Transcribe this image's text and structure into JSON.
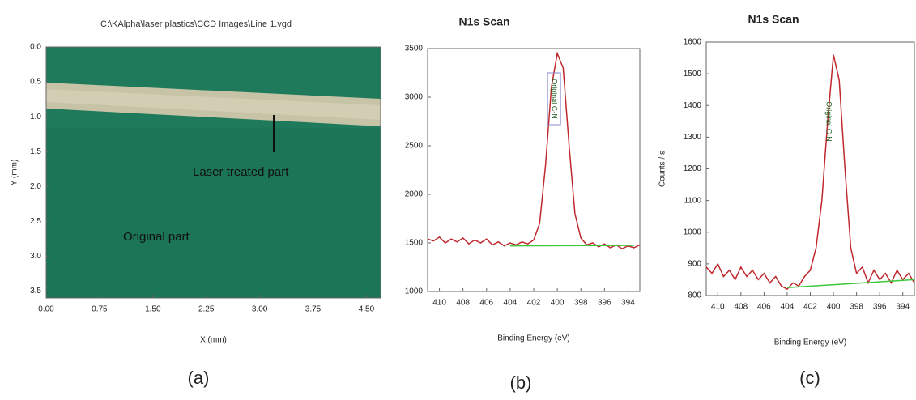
{
  "chart_data": [
    {
      "type": "image",
      "title": "C:\\KAlpha\\laser plastics\\CCD Images\\Line 1.vgd",
      "panel_label": "(a)",
      "xlabel": "X (mm)",
      "ylabel": "Y (mm)",
      "xlim": [
        0,
        4.7
      ],
      "ylim": [
        3.6,
        0
      ],
      "xticks": [
        {
          "value": 0,
          "label": "0.00"
        },
        {
          "value": 0.75,
          "label": "0.75"
        },
        {
          "value": 1.5,
          "label": "1.50"
        },
        {
          "value": 2.25,
          "label": "2.25"
        },
        {
          "value": 3,
          "label": "3.00"
        },
        {
          "value": 3.75,
          "label": "3.75"
        },
        {
          "value": 4.5,
          "label": "4.50"
        }
      ],
      "yticks": [
        {
          "value": 0,
          "label": "0.0"
        },
        {
          "value": 0.5,
          "label": "0.5"
        },
        {
          "value": 1,
          "label": "1.0"
        },
        {
          "value": 1.5,
          "label": "1.5"
        },
        {
          "value": 2,
          "label": "2.0"
        },
        {
          "value": 2.5,
          "label": "2.5"
        },
        {
          "value": 3,
          "label": "3.0"
        },
        {
          "value": 3.5,
          "label": "3.5"
        }
      ],
      "annotations": [
        {
          "text": "Laser treated part"
        },
        {
          "text": "Original part"
        }
      ]
    },
    {
      "type": "line",
      "title": "N1s Scan",
      "panel_label": "(b)",
      "xlabel": "Binding Energy (eV)",
      "xlim": [
        411,
        393
      ],
      "ylim": [
        1000,
        3500
      ],
      "xticks": [
        410,
        408,
        406,
        404,
        402,
        400,
        398,
        396,
        394
      ],
      "yticks": [
        1000,
        1500,
        2000,
        2500,
        3000,
        3500
      ],
      "annotations": [
        {
          "text": "Original C-N"
        }
      ],
      "series": [
        {
          "color": "#c0282d",
          "x": [
            411,
            410.5,
            410,
            409.5,
            409,
            408.5,
            408,
            407.5,
            407,
            406.5,
            406,
            405.5,
            405,
            404.5,
            404,
            403.5,
            403,
            402.5,
            402,
            401.5,
            401,
            400.5,
            400,
            399.5,
            399,
            398.5,
            398,
            397.5,
            397,
            396.5,
            396,
            395.5,
            395,
            394.5,
            394,
            393.5,
            393
          ],
          "values": [
            1540,
            1520,
            1560,
            1500,
            1540,
            1510,
            1550,
            1490,
            1530,
            1500,
            1540,
            1480,
            1510,
            1470,
            1500,
            1480,
            1510,
            1490,
            1530,
            1700,
            2300,
            3100,
            3450,
            3300,
            2500,
            1800,
            1550,
            1480,
            1500,
            1460,
            1490,
            1450,
            1480,
            1440,
            1470,
            1450,
            1480
          ]
        },
        {
          "color": "#3cc83c",
          "x": [
            404,
            393.5
          ],
          "values": [
            1470,
            1475
          ]
        }
      ]
    },
    {
      "type": "line",
      "title": "N1s Scan",
      "panel_label": "(c)",
      "xlabel": "Binding Energy (eV)",
      "ylabel": "Counts / s",
      "xlim": [
        411,
        393
      ],
      "ylim": [
        800,
        1600
      ],
      "xticks": [
        410,
        408,
        406,
        404,
        402,
        400,
        398,
        396,
        394
      ],
      "yticks": [
        800,
        900,
        1000,
        1100,
        1200,
        1300,
        1400,
        1500,
        1600
      ],
      "annotations": [
        {
          "text": "Original C-N"
        }
      ],
      "series": [
        {
          "color": "#c0282d",
          "x": [
            411,
            410.5,
            410,
            409.5,
            409,
            408.5,
            408,
            407.5,
            407,
            406.5,
            406,
            405.5,
            405,
            404.5,
            404,
            403.5,
            403,
            402.5,
            402,
            401.5,
            401,
            400.5,
            400,
            399.5,
            399,
            398.5,
            398,
            397.5,
            397,
            396.5,
            396,
            395.5,
            395,
            394.5,
            394,
            393.5,
            393
          ],
          "values": [
            890,
            870,
            900,
            860,
            880,
            850,
            890,
            860,
            880,
            850,
            870,
            840,
            860,
            830,
            820,
            840,
            830,
            860,
            880,
            950,
            1100,
            1350,
            1560,
            1480,
            1200,
            950,
            870,
            890,
            840,
            880,
            850,
            870,
            840,
            880,
            850,
            870,
            840
          ]
        },
        {
          "color": "#3cc83c",
          "x": [
            404,
            393
          ],
          "values": [
            825,
            850
          ]
        }
      ]
    }
  ]
}
